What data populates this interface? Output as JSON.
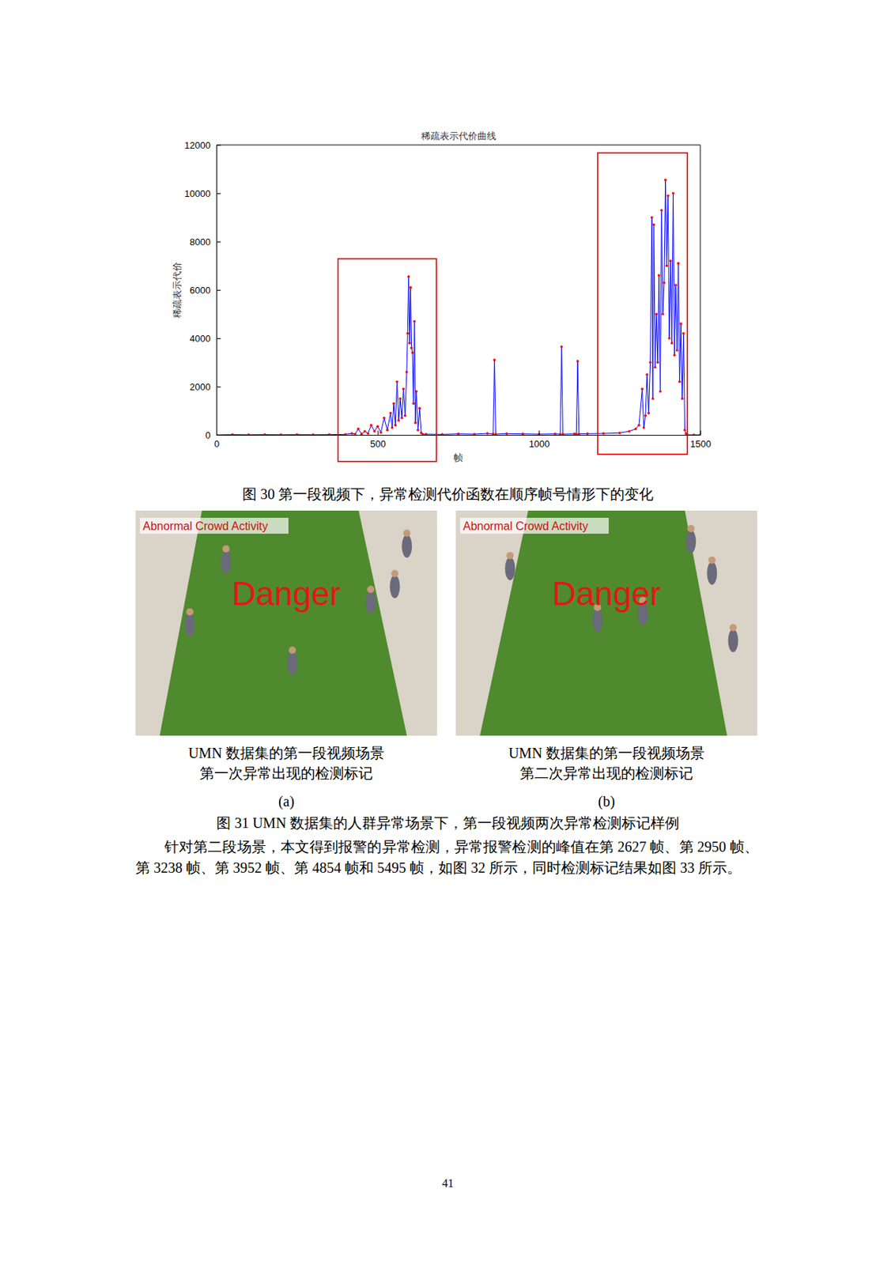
{
  "chart_data": {
    "type": "line",
    "title": "稀疏表示代价曲线",
    "x_label": "帧",
    "y_label": "稀疏表示代价",
    "x": [
      0,
      50,
      100,
      150,
      200,
      250,
      300,
      350,
      400,
      420,
      430,
      440,
      450,
      460,
      470,
      480,
      490,
      500,
      510,
      520,
      530,
      540,
      545,
      550,
      555,
      560,
      565,
      570,
      575,
      580,
      585,
      590,
      593,
      596,
      599,
      602,
      605,
      608,
      611,
      614,
      617,
      620,
      625,
      630,
      635,
      640,
      650,
      700,
      750,
      800,
      840,
      858,
      862,
      866,
      900,
      950,
      1000,
      1050,
      1066,
      1070,
      1074,
      1110,
      1116,
      1120,
      1124,
      1150,
      1200,
      1250,
      1280,
      1300,
      1310,
      1320,
      1325,
      1330,
      1335,
      1340,
      1345,
      1350,
      1353,
      1356,
      1360,
      1364,
      1368,
      1372,
      1376,
      1380,
      1384,
      1388,
      1392,
      1396,
      1400,
      1404,
      1408,
      1412,
      1416,
      1420,
      1424,
      1428,
      1432,
      1436,
      1440,
      1444,
      1448,
      1452,
      1456,
      1460,
      1480,
      1500
    ],
    "values": [
      0,
      10,
      5,
      10,
      5,
      10,
      5,
      10,
      20,
      60,
      30,
      250,
      40,
      150,
      60,
      400,
      150,
      350,
      100,
      700,
      200,
      900,
      300,
      1300,
      400,
      2200,
      600,
      1500,
      700,
      1900,
      800,
      2600,
      4200,
      6550,
      3800,
      6100,
      3600,
      3400,
      1300,
      4700,
      500,
      1800,
      200,
      1100,
      80,
      20,
      30,
      20,
      40,
      30,
      60,
      40,
      3100,
      30,
      50,
      40,
      30,
      40,
      30,
      3650,
      30,
      40,
      30,
      3050,
      40,
      50,
      60,
      80,
      150,
      250,
      400,
      1900,
      300,
      800,
      2500,
      900,
      3000,
      9000,
      1500,
      8700,
      2800,
      5000,
      3000,
      6600,
      1800,
      9300,
      5000,
      6300,
      10550,
      7000,
      9900,
      4000,
      7200,
      3800,
      10000,
      3300,
      6200,
      3500,
      7100,
      2200,
      4600,
      1500,
      4200,
      200,
      50,
      0,
      0,
      0
    ],
    "color": "#0000ff",
    "marker": "dot",
    "xlim": [
      0,
      1500
    ],
    "ylim": [
      0,
      12000
    ],
    "xticks": [
      0,
      500,
      1000,
      1500
    ],
    "yticks": [
      0,
      2000,
      4000,
      6000,
      8000,
      10000,
      12000
    ],
    "grid": false,
    "highlight_regions": [
      {
        "x": [
          377,
          682
        ],
        "y": [
          -1100,
          7290
        ]
      },
      {
        "x": [
          1182,
          1460
        ],
        "y": [
          -800,
          11670
        ]
      }
    ]
  },
  "document": {
    "figure30_caption": "图 30 第一段视频下，异常检测代价函数在顺序帧号情形下的变化",
    "figure31": {
      "panels": [
        {
          "overlay_texts": [
            "Abnormal Crowd Activity",
            "Danger"
          ],
          "caption": [
            "UMN 数据集的第一段视频场景",
            "第一次异常出现的检测标记"
          ],
          "label": "(a)"
        },
        {
          "overlay_texts": [
            "Abnormal Crowd Activity",
            "Danger"
          ],
          "caption": [
            "UMN 数据集的第一段视频场景",
            "第二次异常出现的检测标记"
          ],
          "label": "(b)"
        }
      ],
      "caption": "图 31 UMN 数据集的人群异常场景下，第一段视频两次异常检测标记样例"
    },
    "paragraph": "针对第二段场景，本文得到报警的异常检测，异常报警检测的峰值在第 2627 帧、第 2950 帧、第 3238 帧、第 3952 帧、第 4854 帧和 5495 帧，如图 32 所示，同时检测标记结果如图 33 所示。",
    "page_number": "41"
  }
}
